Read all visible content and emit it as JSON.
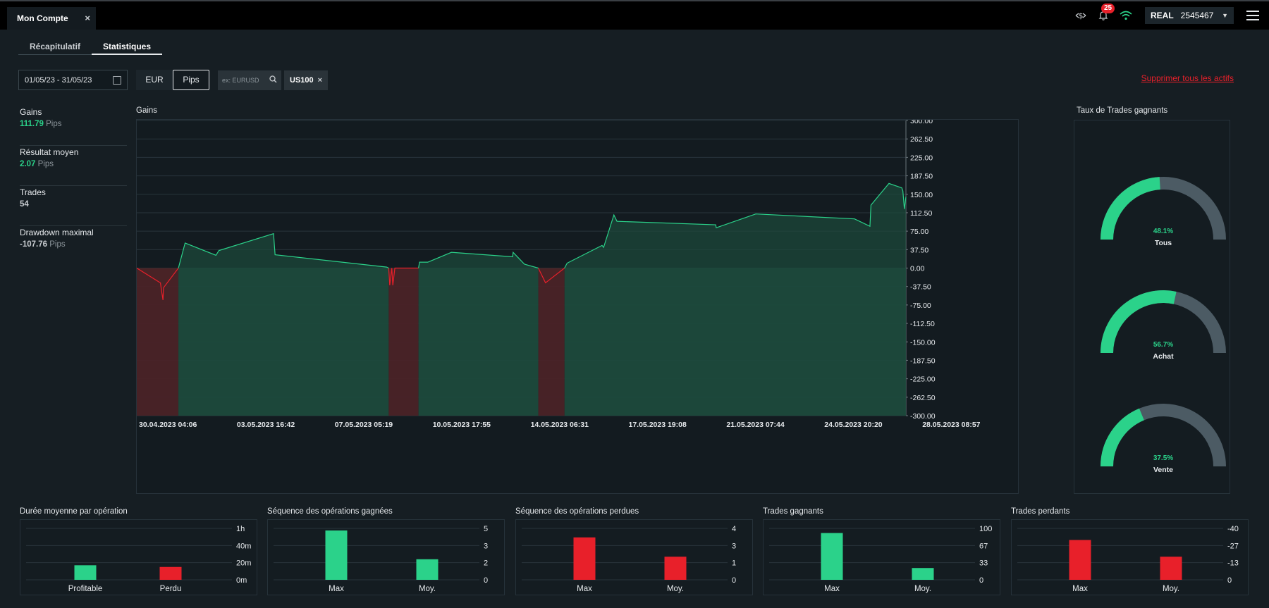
{
  "window": {
    "tab_title": "Mon Compte",
    "tab_close": "×"
  },
  "topbar": {
    "notification_count": "25",
    "account_type": "REAL",
    "account_number": "2545467",
    "caret": "▼"
  },
  "subtabs": [
    "Récapitulatif",
    "Statistiques"
  ],
  "active_subtab": "Statistiques",
  "filters": {
    "date_range": "01/05/23 - 31/05/23",
    "currency_options": [
      "EUR",
      "Pips"
    ],
    "currency_selected": "Pips",
    "search_placeholder": "ex: EURUSD",
    "chip": "US100",
    "chip_close": "×",
    "delete_all": "Supprimer tous les actifs"
  },
  "stats": [
    {
      "label": "Gains",
      "value": "111.79",
      "unit": "Pips",
      "color": "green"
    },
    {
      "label": "Résultat moyen",
      "value": "2.07",
      "unit": "Pips",
      "color": "green"
    },
    {
      "label": "Trades",
      "value": "54",
      "unit": "",
      "color": "grey"
    },
    {
      "label": "Drawdown maximal",
      "value": "-107.76",
      "unit": "Pips",
      "color": "grey"
    }
  ],
  "colors": {
    "green": "#2bd28a",
    "green_fill": "#1c4a3c",
    "red": "#e8202a",
    "red_fill": "#4a2327",
    "gauge_track": "#4c5b64",
    "grid": "#28343b"
  },
  "chart_data": [
    {
      "type": "area",
      "title": "Gains",
      "ylim": [
        -300,
        300
      ],
      "y_ticks": [
        "300.00",
        "262.50",
        "225.00",
        "187.50",
        "150.00",
        "112.50",
        "75.00",
        "37.50",
        "0.00",
        "-37.50",
        "-75.00",
        "-112.50",
        "-150.00",
        "-187.50",
        "-225.00",
        "-262.50",
        "-300.00"
      ],
      "x_ticks": [
        "30.04.2023 04:06",
        "03.05.2023 16:42",
        "07.05.2023 05:19",
        "10.05.2023 17:55",
        "14.05.2023 06:31",
        "17.05.2023 19:08",
        "21.05.2023 07:44",
        "24.05.2023 20:20",
        "28.05.2023 08:57"
      ],
      "x_range": [
        "29.04.2023 20:00",
        "31.05.2023 00:00"
      ],
      "grid": true,
      "series": [
        {
          "x": [
            "29.04.2023 20:00",
            "30.04.2023 19:00",
            "30.04.2023 20:00",
            "30.04.2023 21:30",
            "30.04.2023 22:00",
            "01.05.2023 12:30",
            "01.05.2023 19:00",
            "03.05.2023 01:00",
            "03.05.2023 04:00",
            "03.05.2023 04:30",
            "05.05.2023 09:00",
            "05.05.2023 10:30",
            "09.05.2023 23:00",
            "10.05.2023 01:00",
            "10.05.2023 02:00",
            "10.05.2023 04:00",
            "10.05.2023 05:00",
            "10.05.2023 07:00",
            "10.05.2023 13:00",
            "11.05.2023 06:00",
            "11.05.2023 07:00",
            "11.05.2023 15:00",
            "12.05.2023 14:00",
            "15.05.2023 01:30",
            "15.05.2023 02:00",
            "15.05.2023 13:00",
            "16.05.2023 02:30",
            "16.05.2023 09:30",
            "17.05.2023 04:00",
            "17.05.2023 06:30",
            "18.05.2023 16:30",
            "18.05.2023 18:00",
            "19.05.2023 04:00",
            "19.05.2023 07:00",
            "23.05.2023 07:00",
            "23.05.2023 07:30",
            "24.05.2023 22:00",
            "28.05.2023 22:00",
            "29.05.2023 13:00",
            "29.05.2023 14:00",
            "30.05.2023 07:30",
            "30.05.2023 20:00",
            "30.05.2023 21:00",
            "30.05.2023 22:30",
            "30.05.2023 23:59"
          ],
          "y": [
            0,
            -30,
            -45,
            -65,
            -40,
            0,
            51,
            26,
            36,
            36,
            70,
            27,
            2,
            0,
            -35,
            0,
            -35,
            0,
            0,
            0,
            12,
            12,
            32,
            23,
            32,
            8,
            0,
            -30,
            0,
            10,
            46,
            42,
            108,
            95,
            88,
            82,
            110,
            100,
            85,
            128,
            172,
            163,
            157,
            120,
            145
          ]
        }
      ]
    },
    {
      "type": "pie",
      "title": "Taux de Trades gagnants",
      "series": [
        {
          "name": "Tous",
          "value": 48.1,
          "label": "48.1%"
        },
        {
          "name": "Achat",
          "value": 56.7,
          "label": "56.7%"
        },
        {
          "name": "Vente",
          "value": 37.5,
          "label": "37.5%"
        }
      ]
    },
    {
      "type": "bar",
      "title": "Durée moyenne par opération",
      "categories": [
        "Profitable",
        "Perdu"
      ],
      "values": [
        17,
        15
      ],
      "ylim": [
        0,
        60
      ],
      "y_ticks": [
        "1h",
        "40m",
        "20m",
        "0m"
      ]
    },
    {
      "type": "bar",
      "title": "Séquence des opérations gagnées",
      "categories": [
        "Max",
        "Moy."
      ],
      "values": [
        4.8,
        2
      ],
      "ylim": [
        0,
        5
      ],
      "y_ticks": [
        "5",
        "3",
        "2",
        "0"
      ]
    },
    {
      "type": "bar",
      "title": "Séquence des opérations perdues",
      "categories": [
        "Max",
        "Moy."
      ],
      "values": [
        3.3,
        1.8
      ],
      "ylim": [
        0,
        4
      ],
      "y_ticks": [
        "4",
        "3",
        "1",
        "0"
      ]
    },
    {
      "type": "bar",
      "title": "Trades gagnants",
      "categories": [
        "Max",
        "Moy."
      ],
      "values": [
        91,
        23
      ],
      "ylim": [
        0,
        100
      ],
      "y_ticks": [
        "100",
        "67",
        "33",
        "0"
      ]
    },
    {
      "type": "bar",
      "title": "Trades perdants",
      "categories": [
        "Max",
        "Moy."
      ],
      "values": [
        -31,
        -18
      ],
      "ylim": [
        0,
        -40
      ],
      "y_ticks": [
        "-40",
        "-27",
        "-13",
        "0"
      ]
    }
  ]
}
